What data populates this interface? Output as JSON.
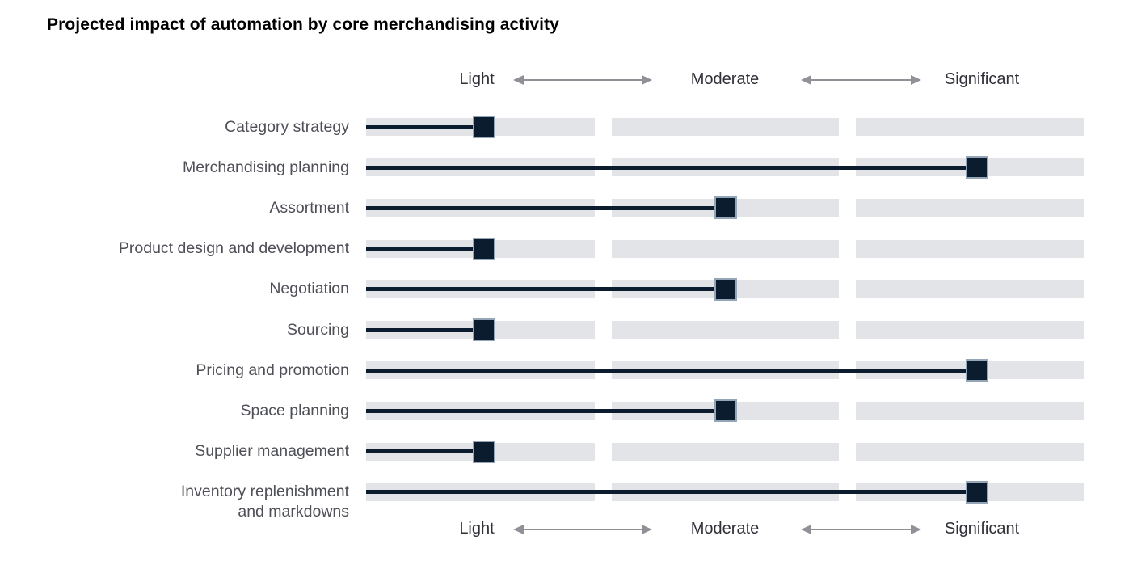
{
  "title": "Projected impact of automation by core merchandising activity",
  "colors": {
    "navy": "#0b1c2e",
    "band_gray": "#e3e4e8",
    "arrow_gray": "#8f9196",
    "label_gray": "#4e4f57",
    "axis_text": "#2f3037",
    "title_black": "#000000",
    "marker_border": "#94a5b8",
    "background": "#ffffff"
  },
  "icons": {
    "scale_arrows": "double-arrow-icon"
  },
  "chart_data": {
    "type": "scatter",
    "style": "lollipop",
    "title": "Projected impact of automation by core merchandising activity",
    "x_axis": {
      "type": "qualitative",
      "labels": [
        "Light",
        "Moderate",
        "Significant"
      ],
      "shown_top": true,
      "shown_bottom": true,
      "grid": "three gray band segments per row"
    },
    "value_scale_note": "1 = Light, 2 = Moderate, 3 = Significant",
    "categories": [
      "Category strategy",
      "Merchandising planning",
      "Assortment",
      "Product design and development",
      "Negotiation",
      "Sourcing",
      "Pricing and promotion",
      "Space planning",
      "Supplier management",
      "Inventory replenishment and markdowns"
    ],
    "values": [
      1,
      3,
      2,
      1,
      2,
      1,
      3,
      2,
      1,
      3
    ],
    "rows": [
      {
        "label": "Category strategy",
        "label_lines": [
          "Category strategy"
        ],
        "value": "Light",
        "numeric": 1
      },
      {
        "label": "Merchandising planning",
        "label_lines": [
          "Merchandising planning"
        ],
        "value": "Significant",
        "numeric": 3
      },
      {
        "label": "Assortment",
        "label_lines": [
          "Assortment"
        ],
        "value": "Moderate",
        "numeric": 2
      },
      {
        "label": "Product design and development",
        "label_lines": [
          "Product design and development"
        ],
        "value": "Light",
        "numeric": 1
      },
      {
        "label": "Negotiation",
        "label_lines": [
          "Negotiation"
        ],
        "value": "Moderate",
        "numeric": 2
      },
      {
        "label": "Sourcing",
        "label_lines": [
          "Sourcing"
        ],
        "value": "Light",
        "numeric": 1
      },
      {
        "label": "Pricing and promotion",
        "label_lines": [
          "Pricing and promotion"
        ],
        "value": "Significant",
        "numeric": 3
      },
      {
        "label": "Space planning",
        "label_lines": [
          "Space planning"
        ],
        "value": "Moderate",
        "numeric": 2
      },
      {
        "label": "Supplier management",
        "label_lines": [
          "Supplier management"
        ],
        "value": "Light",
        "numeric": 1
      },
      {
        "label": "Inventory replenishment and markdowns",
        "label_lines": [
          "Inventory replenishment",
          "and markdowns"
        ],
        "value": "Significant",
        "numeric": 3
      }
    ]
  }
}
